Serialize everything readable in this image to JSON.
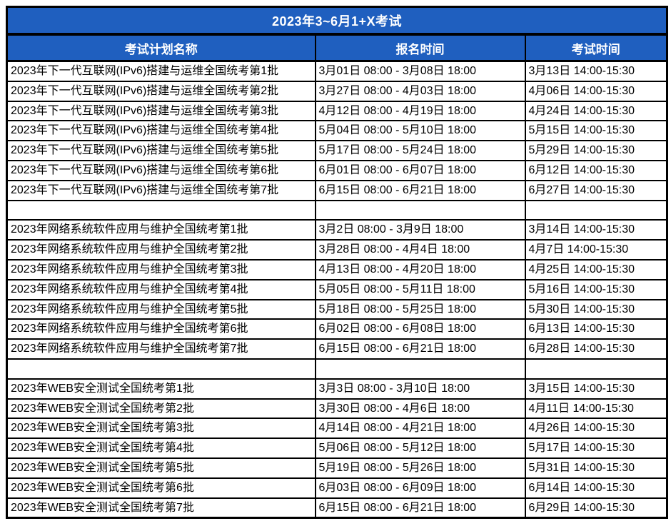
{
  "table": {
    "title": "2023年3~6月1+X考试",
    "columns": {
      "plan_name": "考试计划名称",
      "registration_time": "报名时间",
      "exam_time": "考试时间"
    },
    "accent_color": "#1f5fbf",
    "border_color": "#000000",
    "rows": [
      {
        "name": "2023年下一代互联网(IPv6)搭建与运维全国统考第1批",
        "reg": "3月01日 08:00 - 3月08日 18:00",
        "exam": "3月13日 14:00-15:30"
      },
      {
        "name": "2023年下一代互联网(IPv6)搭建与运维全国统考第2批",
        "reg": "3月27日 08:00 - 4月03日 18:00",
        "exam": "4月06日 14:00-15:30"
      },
      {
        "name": "2023年下一代互联网(IPv6)搭建与运维全国统考第3批",
        "reg": "4月12日 08:00 - 4月19日 18:00",
        "exam": "4月24日 14:00-15:30"
      },
      {
        "name": "2023年下一代互联网(IPv6)搭建与运维全国统考第4批",
        "reg": "5月04日 08:00 - 5月10日 18:00",
        "exam": "5月15日 14:00-15:30"
      },
      {
        "name": "2023年下一代互联网(IPv6)搭建与运维全国统考第5批",
        "reg": "5月17日 08:00 - 5月24日 18:00",
        "exam": "5月29日 14:00-15:30"
      },
      {
        "name": "2023年下一代互联网(IPv6)搭建与运维全国统考第6批",
        "reg": "6月01日 08:00 - 6月07日 18:00",
        "exam": "6月12日 14:00-15:30"
      },
      {
        "name": "2023年下一代互联网(IPv6)搭建与运维全国统考第7批",
        "reg": "6月15日 08:00 - 6月21日 18:00",
        "exam": "6月27日 14:00-15:30"
      },
      {
        "name": "",
        "reg": "",
        "exam": ""
      },
      {
        "name": "2023年网络系统软件应用与维护全国统考第1批",
        "reg": "3月2日 08:00 - 3月9日 18:00",
        "exam": "3月14日 14:00-15:30"
      },
      {
        "name": "2023年网络系统软件应用与维护全国统考第2批",
        "reg": "3月28日 08:00 - 4月4日 18:00",
        "exam": "4月7日 14:00-15:30"
      },
      {
        "name": "2023年网络系统软件应用与维护全国统考第3批",
        "reg": "4月13日 08:00 - 4月20日 18:00",
        "exam": "4月25日 14:00-15:30"
      },
      {
        "name": "2023年网络系统软件应用与维护全国统考第4批",
        "reg": "5月05日 08:00 - 5月11日 18:00",
        "exam": "5月16日 14:00-15:30"
      },
      {
        "name": "2023年网络系统软件应用与维护全国统考第5批",
        "reg": "5月18日 08:00 - 5月25日 18:00",
        "exam": "5月30日 14:00-15:30"
      },
      {
        "name": "2023年网络系统软件应用与维护全国统考第6批",
        "reg": "6月02日 08:00 - 6月08日 18:00",
        "exam": "6月13日 14:00-15:30"
      },
      {
        "name": "2023年网络系统软件应用与维护全国统考第7批",
        "reg": "6月15日 08:00 - 6月21日 18:00",
        "exam": "6月28日 14:00-15:30"
      },
      {
        "name": "",
        "reg": "",
        "exam": ""
      },
      {
        "name": "2023年WEB安全测试全国统考第1批",
        "reg": "3月3日 08:00 - 3月10日 18:00",
        "exam": "3月15日 14:00-15:30"
      },
      {
        "name": "2023年WEB安全测试全国统考第2批",
        "reg": "3月30日 08:00 - 4月6日 18:00",
        "exam": "4月11日 14:00-15:30"
      },
      {
        "name": "2023年WEB安全测试全国统考第3批",
        "reg": "4月14日 08:00 - 4月21日 18:00",
        "exam": "4月26日 14:00-15:30"
      },
      {
        "name": "2023年WEB安全测试全国统考第4批",
        "reg": "5月06日 08:00 - 5月12日 18:00",
        "exam": "5月17日 14:00-15:30"
      },
      {
        "name": "2023年WEB安全测试全国统考第5批",
        "reg": "5月19日 08:00 - 5月26日 18:00",
        "exam": "5月31日 14:00-15:30"
      },
      {
        "name": "2023年WEB安全测试全国统考第6批",
        "reg": "6月03日 08:00 - 6月09日 18:00",
        "exam": "6月14日 14:00-15:30"
      },
      {
        "name": "2023年WEB安全测试全国统考第7批",
        "reg": "6月15日 08:00 - 6月21日 18:00",
        "exam": "6月29日 14:00-15:30"
      }
    ]
  }
}
